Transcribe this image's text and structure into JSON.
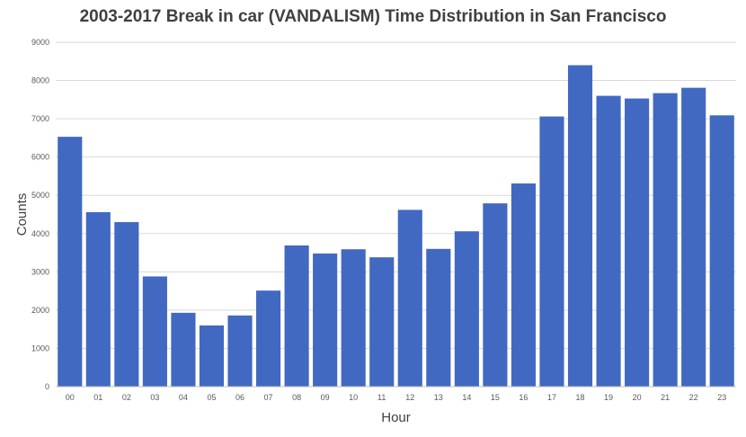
{
  "chart_data": {
    "type": "bar",
    "title": "2003-2017 Break in car (VANDALISM) Time Distribution in San Francisco",
    "xlabel": "Hour",
    "ylabel": "Counts",
    "categories": [
      "00",
      "01",
      "02",
      "03",
      "04",
      "05",
      "06",
      "07",
      "08",
      "09",
      "10",
      "11",
      "12",
      "13",
      "14",
      "15",
      "16",
      "17",
      "18",
      "19",
      "20",
      "21",
      "22",
      "23"
    ],
    "values": [
      6530,
      4560,
      4300,
      2880,
      1930,
      1600,
      1860,
      2510,
      3690,
      3480,
      3590,
      3380,
      4620,
      3600,
      4060,
      4790,
      5310,
      7060,
      8400,
      7600,
      7530,
      7670,
      7810,
      7090
    ],
    "ylim": [
      0,
      9000
    ],
    "yticks": [
      0,
      1000,
      2000,
      3000,
      4000,
      5000,
      6000,
      7000,
      8000,
      9000
    ],
    "grid": true,
    "bar_color": "#4169c1"
  }
}
